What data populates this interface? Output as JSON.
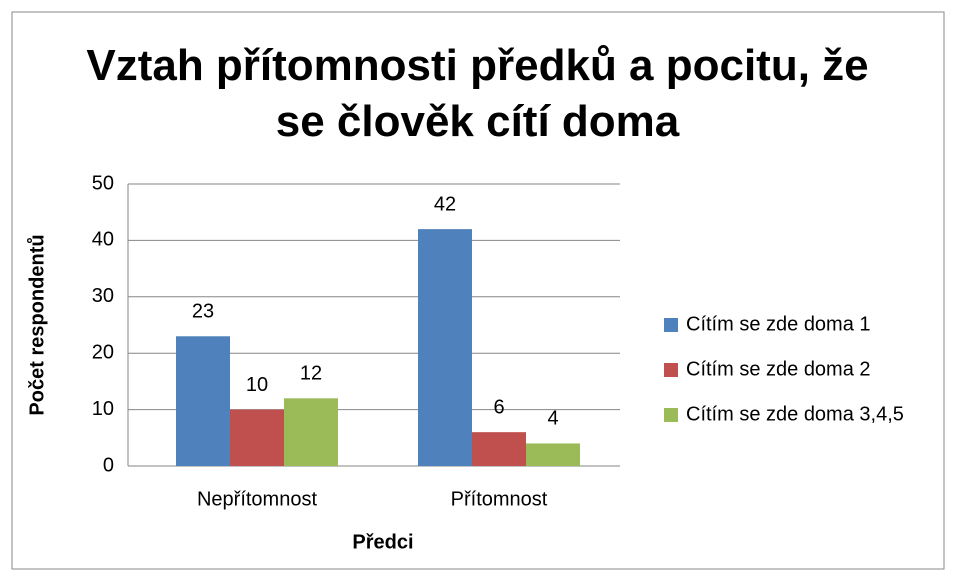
{
  "chart_data": {
    "type": "bar",
    "title": "Vztah přítomnosti předků a pocitu, že se člověk cítí doma",
    "x_label": "Předci",
    "y_label": "Počet respondentů",
    "categories": [
      "Nepřítomnost",
      "Přítomnost"
    ],
    "series": [
      {
        "name": "Cítím se zde doma 1",
        "color": "#4f81bd",
        "values": [
          23,
          42
        ]
      },
      {
        "name": "Cítím se zde doma 2",
        "color": "#c0504d",
        "values": [
          10,
          6
        ]
      },
      {
        "name": "Cítím se zde doma 3,4,5",
        "color": "#9bbb59",
        "values": [
          12,
          4
        ]
      }
    ],
    "ylim": [
      0,
      50
    ],
    "yticks": [
      0,
      10,
      20,
      30,
      40,
      50
    ],
    "grid": true,
    "legend": "right"
  }
}
